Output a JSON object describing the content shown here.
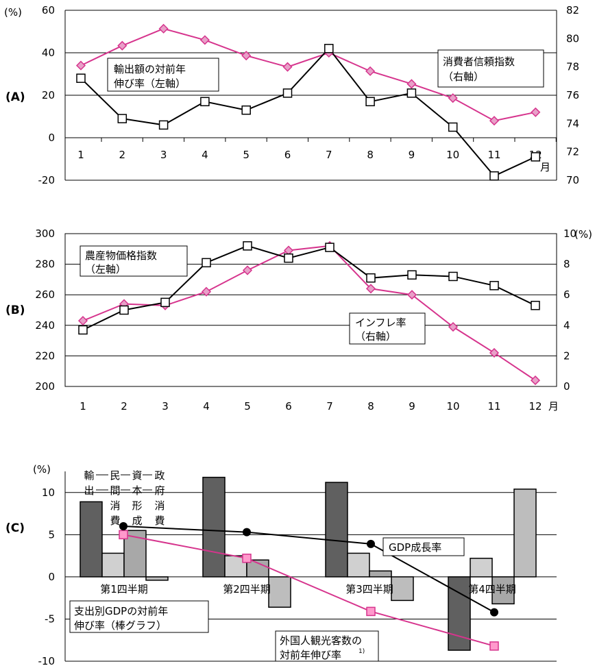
{
  "colors": {
    "black_series": "#000000",
    "pink_series": "#d6348d",
    "pink_marker_fill": "#e8a0c8",
    "pink_square_fill": "#ff99cc",
    "bar_export": "#606060",
    "bar_private_consumption": "#d0d0d0",
    "bar_capital_formation": "#a8a8a8",
    "bar_government_consumption": "#bdbdbd",
    "grid": "#000000"
  },
  "chart_data": [
    {
      "panel_label": "(A)",
      "type": "line",
      "left_axis_unit": "(%)",
      "x": [
        "1",
        "2",
        "3",
        "4",
        "5",
        "6",
        "7",
        "8",
        "9",
        "10",
        "11",
        "12"
      ],
      "x_unit": "月",
      "left_ylim": [
        -20,
        60
      ],
      "left_ticks": [
        "-20",
        "0",
        "20",
        "40",
        "60"
      ],
      "right_ylim": [
        70,
        82
      ],
      "right_ticks": [
        "70",
        "72",
        "74",
        "76",
        "78",
        "80",
        "82"
      ],
      "gridlines_left": [
        -20,
        0,
        20,
        40
      ],
      "series": [
        {
          "name": "輸出額の対前年伸び率（左軸）",
          "axis": "left",
          "marker": "square",
          "values": [
            28,
            9,
            6,
            17,
            13,
            21,
            42,
            17,
            21,
            5,
            -18,
            -9
          ]
        },
        {
          "name": "消費者信頼指数（右軸）",
          "axis": "right",
          "marker": "diamond",
          "values": [
            78.1,
            79.5,
            80.7,
            79.9,
            78.8,
            78.0,
            79.0,
            77.7,
            76.8,
            75.8,
            74.2,
            74.8
          ]
        }
      ],
      "labels": [
        {
          "lines": [
            "輸出額の対前年",
            "伸び率（左軸）"
          ]
        },
        {
          "lines": [
            "消費者信頼指数",
            "（右軸）"
          ]
        }
      ]
    },
    {
      "panel_label": "(B)",
      "type": "line",
      "x": [
        "1",
        "2",
        "3",
        "4",
        "5",
        "6",
        "7",
        "8",
        "9",
        "10",
        "11",
        "12"
      ],
      "x_unit": "月",
      "left_ylim": [
        200,
        300
      ],
      "left_ticks": [
        "200",
        "220",
        "240",
        "260",
        "280",
        "300"
      ],
      "right_ylim": [
        0,
        10
      ],
      "right_ticks": [
        "0",
        "2",
        "4",
        "6",
        "8",
        "10"
      ],
      "right_axis_unit": "(%)",
      "gridlines_left": [
        220,
        240,
        260,
        280
      ],
      "series": [
        {
          "name": "農産物価格指数（左軸）",
          "axis": "left",
          "marker": "square",
          "values": [
            237,
            250,
            255,
            281,
            292,
            284,
            291,
            271,
            273,
            272,
            266,
            253
          ]
        },
        {
          "name": "インフレ率（右軸）",
          "axis": "right",
          "marker": "diamond",
          "values": [
            4.3,
            5.4,
            5.3,
            6.2,
            7.6,
            8.9,
            9.2,
            6.4,
            6.0,
            3.9,
            2.2,
            0.4
          ]
        }
      ],
      "labels": [
        {
          "lines": [
            "農産物価格指数",
            "（左軸）"
          ]
        },
        {
          "lines": [
            "インフレ率",
            "（右軸）"
          ]
        }
      ]
    },
    {
      "panel_label": "(C)",
      "type": "bar",
      "left_axis_unit": "(%)",
      "categories": [
        "第1四半期",
        "第2四半期",
        "第3四半期",
        "第4四半期"
      ],
      "ylim": [
        -10,
        12.5
      ],
      "ticks": [
        "-10",
        "-5",
        "0",
        "5",
        "10"
      ],
      "bar_series": [
        {
          "name": "輸出",
          "values": [
            8.9,
            11.8,
            11.2,
            -8.7
          ]
        },
        {
          "name": "民間消費",
          "values": [
            2.8,
            2.5,
            2.8,
            2.2
          ]
        },
        {
          "name": "資本形成",
          "values": [
            5.5,
            2.0,
            0.7,
            -3.2
          ]
        },
        {
          "name": "政府消費",
          "values": [
            -0.4,
            -3.6,
            -2.8,
            10.4
          ]
        }
      ],
      "bar_legend_labels": [
        {
          "chars": [
            "輸",
            "出"
          ]
        },
        {
          "chars": [
            "民",
            "間",
            "消",
            "費"
          ]
        },
        {
          "chars": [
            "資",
            "本",
            "形",
            "成"
          ]
        },
        {
          "chars": [
            "政",
            "府",
            "消",
            "費"
          ]
        }
      ],
      "line_series": [
        {
          "name": "GDP成長率",
          "marker": "circle",
          "values": [
            6.0,
            5.3,
            3.9,
            -4.2
          ]
        },
        {
          "name": "外国人観光客数の対前年伸び率¹⁾",
          "marker": "square",
          "values": [
            5.0,
            2.2,
            -4.1,
            -8.2
          ]
        }
      ],
      "labels": [
        {
          "lines": [
            "GDP成長率"
          ]
        },
        {
          "lines": [
            "支出別GDPの対前年",
            "伸び率（棒グラフ）"
          ]
        },
        {
          "lines": [
            "外国人観光客数の",
            "対前年伸び率"
          ],
          "superscript": "1)"
        }
      ]
    }
  ]
}
